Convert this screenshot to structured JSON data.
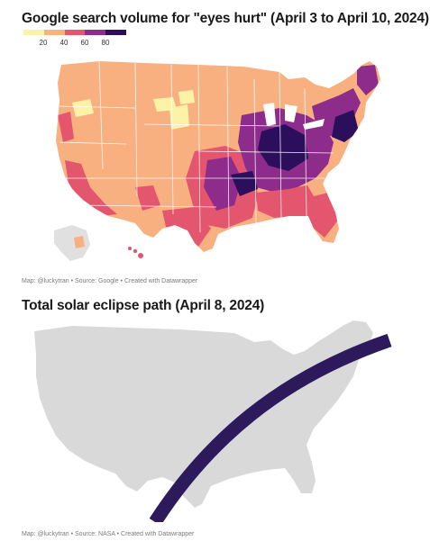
{
  "map1": {
    "title": "Google search volume for \"eyes hurt\" (April 3 to April 10, 2024)",
    "legend": {
      "ticks": [
        "20",
        "40",
        "60",
        "80"
      ],
      "colors": [
        "#fcf3a9",
        "#f9b27c",
        "#e4556e",
        "#8e2c8c",
        "#2b0f5c"
      ]
    },
    "credit": "Map: @luckytran • Source: Google • Created with Datawrapper",
    "palette": {
      "low": "#fcf3a9",
      "light_orange": "#f8b080",
      "mid": "#e4556e",
      "purple": "#8e2c8c",
      "dark": "#2b0f5c"
    }
  },
  "map2": {
    "title": "Total solar eclipse path (April 8, 2024)",
    "credit": "Map: @luckytran • Source: NASA • Created with Datawrapper",
    "land_color": "#d9d9d9",
    "path_color": "#2d1a5c"
  }
}
